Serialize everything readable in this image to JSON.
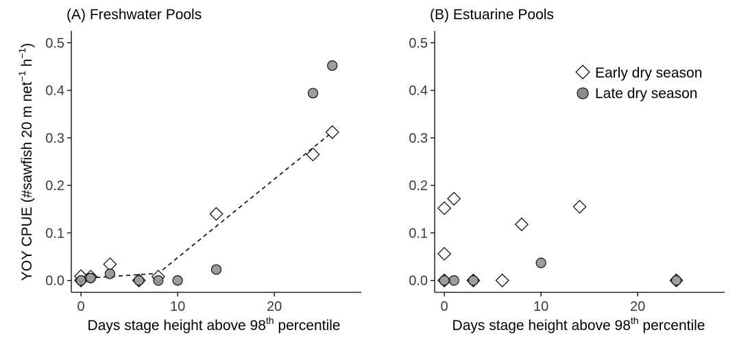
{
  "figure": {
    "ylabel_main": "YOY CPUE (#sawfish 20 m net",
    "ylabel_sup1": "−1",
    "ylabel_mid": " h",
    "ylabel_sup2": "−1",
    "ylabel_end": ")",
    "xlabel_main": "Days stage height above 98",
    "xlabel_sup": "th",
    "xlabel_end": " percentile"
  },
  "legend": {
    "early_label": "Early dry season",
    "late_label": "Late dry season"
  },
  "colors": {
    "early_fill": "#ffffff",
    "late_fill": "#8c8c8c",
    "marker_stroke": "#000000",
    "axis": "#000000"
  },
  "chart_data": [
    {
      "type": "scatter",
      "title": "(A) Freshwater Pools",
      "xlim": [
        -1,
        29
      ],
      "ylim": [
        -0.025,
        0.525
      ],
      "xticks": [
        0,
        10,
        20
      ],
      "yticks": [
        0.0,
        0.1,
        0.2,
        0.3,
        0.4,
        0.5
      ],
      "ytick_labels": [
        "0.0",
        "0.1",
        "0.2",
        "0.3",
        "0.4",
        "0.5"
      ],
      "series": [
        {
          "name": "Early dry season",
          "marker": "diamond",
          "x": [
            0,
            0,
            1,
            3,
            6,
            8,
            14,
            24,
            26
          ],
          "y": [
            0.0,
            0.009,
            0.008,
            0.034,
            0.0,
            0.008,
            0.14,
            0.265,
            0.312
          ]
        },
        {
          "name": "Late dry season",
          "marker": "circle",
          "x": [
            0,
            1,
            3,
            6,
            8,
            10,
            14,
            24,
            26
          ],
          "y": [
            0.0,
            0.005,
            0.014,
            0.0,
            0.0,
            0.0,
            0.023,
            0.394,
            0.452
          ]
        }
      ],
      "fit_line": {
        "style": "dashed",
        "x": [
          0,
          8,
          26
        ],
        "y": [
          0.004,
          0.015,
          0.312
        ]
      }
    },
    {
      "type": "scatter",
      "title": "(B) Estuarine Pools",
      "xlim": [
        -1,
        29
      ],
      "ylim": [
        -0.025,
        0.525
      ],
      "xticks": [
        0,
        10,
        20
      ],
      "yticks": [
        0.0,
        0.1,
        0.2,
        0.3,
        0.4,
        0.5
      ],
      "ytick_labels": [
        "0.0",
        "0.1",
        "0.2",
        "0.3",
        "0.4",
        "0.5"
      ],
      "legend_position": "top-right",
      "series": [
        {
          "name": "Early dry season",
          "marker": "diamond",
          "x": [
            0,
            0,
            0,
            1,
            3,
            6,
            8,
            14,
            24
          ],
          "y": [
            0.152,
            0.056,
            0.0,
            0.172,
            0.0,
            0.0,
            0.118,
            0.155,
            0.0
          ]
        },
        {
          "name": "Late dry season",
          "marker": "circle",
          "x": [
            0,
            1,
            3,
            10,
            24
          ],
          "y": [
            0.0,
            0.0,
            0.0,
            0.037,
            0.0
          ]
        }
      ]
    }
  ]
}
